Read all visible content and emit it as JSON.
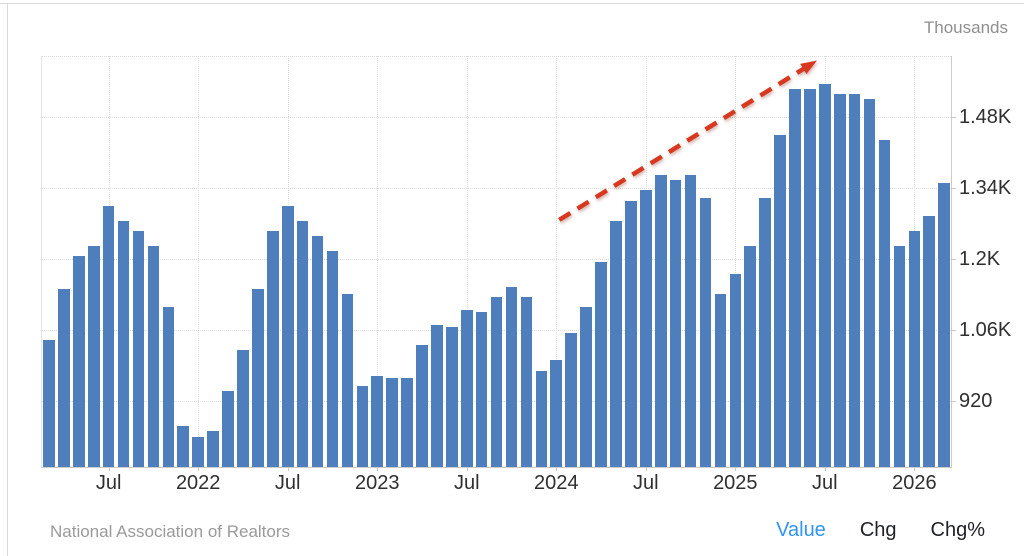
{
  "units_label": "Thousands",
  "footer": {
    "source": "National Association of Realtors",
    "tabs": [
      {
        "label": "Value",
        "active": true
      },
      {
        "label": "Chg",
        "active": false
      },
      {
        "label": "Chg%",
        "active": false
      }
    ]
  },
  "colors": {
    "bar": "#4e7fbc",
    "arrow": "#d8381e",
    "active_tab": "#2e95f4",
    "axis_text": "#2f2f2f",
    "muted_text": "#8f8f8f",
    "gridline": "#dcdcdc",
    "axis_line": "#cccccc"
  },
  "chart_data": {
    "type": "bar",
    "title": "",
    "subtitle": "",
    "ylabel": "Thousands",
    "xlabel": "",
    "grid": "dotted",
    "legend_position": "none",
    "ylim": [
      790,
      1600
    ],
    "x": [
      "2021-03",
      "2021-04",
      "2021-05",
      "2021-06",
      "2021-07",
      "2021-08",
      "2021-09",
      "2021-10",
      "2021-11",
      "2021-12",
      "2022-01",
      "2022-02",
      "2022-03",
      "2022-04",
      "2022-05",
      "2022-06",
      "2022-07",
      "2022-08",
      "2022-09",
      "2022-10",
      "2022-11",
      "2022-12",
      "2023-01",
      "2023-02",
      "2023-03",
      "2023-04",
      "2023-05",
      "2023-06",
      "2023-07",
      "2023-08",
      "2023-09",
      "2023-10",
      "2023-11",
      "2023-12",
      "2024-01",
      "2024-02",
      "2024-03",
      "2024-04",
      "2024-05",
      "2024-06",
      "2024-07",
      "2024-08",
      "2024-09",
      "2024-10",
      "2024-11",
      "2024-12",
      "2025-01",
      "2025-02",
      "2025-03",
      "2025-04",
      "2025-05",
      "2025-06",
      "2025-07",
      "2025-08",
      "2025-09",
      "2025-10",
      "2025-11",
      "2025-12",
      "2026-01",
      "2026-02",
      "2026-03"
    ],
    "values": [
      1040,
      1140,
      1205,
      1225,
      1305,
      1275,
      1255,
      1225,
      1105,
      870,
      850,
      860,
      940,
      1020,
      1140,
      1255,
      1305,
      1275,
      1245,
      1215,
      1130,
      950,
      970,
      965,
      965,
      1030,
      1070,
      1065,
      1100,
      1095,
      1125,
      1145,
      1125,
      980,
      1000,
      1055,
      1105,
      1195,
      1275,
      1315,
      1335,
      1365,
      1355,
      1365,
      1320,
      1130,
      1170,
      1225,
      1320,
      1445,
      1535,
      1535,
      1545,
      1525,
      1525,
      1515,
      1435,
      1225,
      1255,
      1285,
      1350
    ],
    "y_ticks": [
      {
        "label": "920",
        "value": 920
      },
      {
        "label": "1.06K",
        "value": 1060
      },
      {
        "label": "1.2K",
        "value": 1200
      },
      {
        "label": "1.34K",
        "value": 1340
      },
      {
        "label": "1.48K",
        "value": 1480
      }
    ],
    "x_ticks": [
      {
        "label": "Jul",
        "index": 4
      },
      {
        "label": "2022",
        "index": 10
      },
      {
        "label": "Jul",
        "index": 16
      },
      {
        "label": "2023",
        "index": 22
      },
      {
        "label": "Jul",
        "index": 28
      },
      {
        "label": "2024",
        "index": 34
      },
      {
        "label": "Jul",
        "index": 40
      },
      {
        "label": "2025",
        "index": 46
      },
      {
        "label": "Jul",
        "index": 52
      },
      {
        "label": "2026",
        "index": 58
      }
    ],
    "annotation": {
      "type": "dashed-arrow",
      "from": {
        "index": 34.2,
        "value": 1277
      },
      "to": {
        "index": 51.3,
        "value": 1588
      }
    }
  }
}
